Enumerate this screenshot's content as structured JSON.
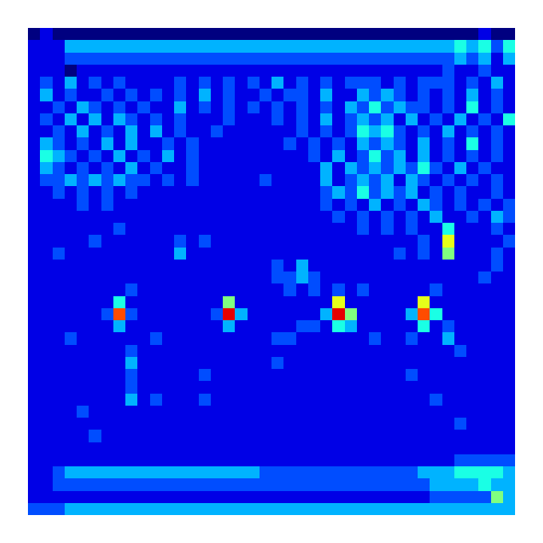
{
  "chart_data": {
    "type": "heatmap",
    "zlim": [
      0,
      10
    ],
    "tick_labels": false,
    "cells": [
      [
        0,
        1,
        0,
        0,
        0,
        0,
        0,
        0,
        0,
        0,
        0,
        0,
        0,
        0,
        0,
        0,
        0,
        0,
        0,
        0,
        0,
        0,
        0,
        0,
        0,
        0,
        0,
        0,
        0,
        0,
        0,
        0,
        0,
        0,
        0,
        0,
        0,
        1,
        0,
        0
      ],
      [
        1,
        1,
        1,
        3,
        3,
        3,
        3,
        3,
        3,
        3,
        3,
        3,
        3,
        3,
        3,
        3,
        3,
        3,
        3,
        3,
        3,
        3,
        3,
        3,
        3,
        3,
        3,
        3,
        3,
        3,
        3,
        3,
        3,
        3,
        3,
        4,
        3,
        4,
        2,
        4
      ],
      [
        1,
        1,
        1,
        2,
        2,
        2,
        2,
        2,
        2,
        2,
        2,
        2,
        2,
        2,
        2,
        2,
        2,
        2,
        2,
        2,
        2,
        2,
        2,
        2,
        2,
        2,
        2,
        2,
        2,
        2,
        2,
        2,
        2,
        2,
        2,
        3,
        2,
        3,
        1,
        3
      ],
      [
        1,
        1,
        1,
        0,
        1,
        1,
        1,
        1,
        1,
        1,
        1,
        1,
        1,
        1,
        1,
        1,
        1,
        1,
        1,
        1,
        1,
        1,
        1,
        1,
        1,
        1,
        1,
        1,
        1,
        1,
        1,
        1,
        1,
        1,
        2,
        1,
        1,
        2,
        1,
        1
      ],
      [
        1,
        2,
        1,
        3,
        1,
        2,
        1,
        2,
        1,
        1,
        1,
        1,
        2,
        1,
        2,
        1,
        2,
        1,
        2,
        1,
        3,
        1,
        2,
        1,
        2,
        1,
        2,
        2,
        2,
        1,
        2,
        1,
        2,
        2,
        2,
        1,
        2,
        1,
        3,
        1
      ],
      [
        1,
        3,
        1,
        2,
        1,
        1,
        2,
        1,
        2,
        1,
        2,
        1,
        2,
        1,
        3,
        1,
        2,
        1,
        1,
        2,
        1,
        2,
        2,
        1,
        3,
        1,
        1,
        3,
        2,
        3,
        2,
        1,
        2,
        1,
        2,
        1,
        3,
        1,
        2,
        1
      ],
      [
        1,
        1,
        2,
        1,
        3,
        2,
        1,
        2,
        1,
        2,
        1,
        1,
        3,
        1,
        2,
        1,
        2,
        1,
        2,
        1,
        2,
        1,
        2,
        1,
        2,
        1,
        3,
        2,
        4,
        2,
        3,
        2,
        2,
        1,
        2,
        1,
        4,
        1,
        2,
        1
      ],
      [
        1,
        2,
        1,
        3,
        1,
        3,
        1,
        3,
        2,
        1,
        2,
        1,
        2,
        1,
        1,
        1,
        2,
        1,
        1,
        1,
        2,
        1,
        2,
        1,
        3,
        1,
        2,
        3,
        2,
        3,
        1,
        3,
        1,
        2,
        1,
        3,
        1,
        2,
        1,
        4
      ],
      [
        1,
        1,
        2,
        1,
        3,
        1,
        2,
        1,
        3,
        1,
        3,
        1,
        2,
        1,
        1,
        2,
        1,
        1,
        1,
        1,
        1,
        1,
        2,
        1,
        2,
        1,
        2,
        4,
        3,
        4,
        2,
        1,
        2,
        1,
        3,
        1,
        2,
        1,
        2,
        1
      ],
      [
        1,
        3,
        2,
        1,
        2,
        1,
        3,
        1,
        3,
        1,
        1,
        2,
        1,
        2,
        1,
        1,
        1,
        1,
        1,
        1,
        1,
        2,
        1,
        2,
        1,
        2,
        1,
        3,
        2,
        3,
        2,
        1,
        3,
        1,
        2,
        1,
        4,
        1,
        2,
        1
      ],
      [
        1,
        4,
        3,
        2,
        1,
        2,
        1,
        3,
        1,
        2,
        1,
        3,
        1,
        2,
        1,
        1,
        1,
        1,
        1,
        1,
        1,
        1,
        1,
        2,
        1,
        3,
        1,
        2,
        4,
        2,
        3,
        1,
        3,
        1,
        2,
        1,
        2,
        1,
        2,
        1
      ],
      [
        1,
        3,
        2,
        1,
        2,
        1,
        2,
        1,
        3,
        1,
        2,
        1,
        1,
        2,
        1,
        1,
        1,
        1,
        1,
        1,
        1,
        1,
        1,
        1,
        3,
        1,
        3,
        2,
        3,
        2,
        3,
        2,
        4,
        2,
        1,
        3,
        1,
        2,
        1,
        1
      ],
      [
        1,
        2,
        2,
        3,
        2,
        3,
        2,
        3,
        2,
        2,
        1,
        2,
        1,
        2,
        1,
        1,
        1,
        1,
        1,
        2,
        1,
        1,
        1,
        1,
        3,
        1,
        2,
        3,
        2,
        3,
        1,
        3,
        2,
        1,
        2,
        1,
        2,
        1,
        2,
        1
      ],
      [
        1,
        1,
        2,
        1,
        2,
        1,
        2,
        1,
        2,
        1,
        1,
        1,
        1,
        1,
        1,
        1,
        1,
        1,
        1,
        1,
        1,
        1,
        1,
        1,
        2,
        3,
        2,
        4,
        2,
        3,
        2,
        3,
        1,
        2,
        1,
        2,
        1,
        1,
        2,
        1
      ],
      [
        1,
        1,
        1,
        1,
        2,
        1,
        2,
        1,
        1,
        1,
        1,
        1,
        1,
        1,
        1,
        1,
        1,
        1,
        1,
        1,
        1,
        1,
        1,
        1,
        2,
        1,
        2,
        1,
        3,
        1,
        2,
        1,
        3,
        2,
        1,
        2,
        1,
        2,
        1,
        2
      ],
      [
        1,
        1,
        1,
        1,
        1,
        1,
        1,
        1,
        1,
        1,
        1,
        1,
        1,
        1,
        1,
        1,
        1,
        1,
        1,
        1,
        1,
        1,
        1,
        1,
        1,
        2,
        1,
        2,
        1,
        2,
        1,
        2,
        1,
        3,
        1,
        1,
        2,
        1,
        3,
        2
      ],
      [
        1,
        1,
        1,
        1,
        1,
        1,
        1,
        2,
        1,
        1,
        1,
        1,
        1,
        1,
        1,
        1,
        1,
        1,
        1,
        1,
        1,
        1,
        1,
        1,
        1,
        1,
        1,
        2,
        1,
        2,
        1,
        2,
        1,
        1,
        4,
        1,
        1,
        1,
        2,
        1
      ],
      [
        1,
        1,
        1,
        1,
        1,
        2,
        1,
        1,
        1,
        1,
        1,
        1,
        2,
        1,
        2,
        1,
        1,
        1,
        1,
        1,
        1,
        1,
        1,
        1,
        1,
        1,
        1,
        1,
        1,
        1,
        1,
        1,
        2,
        1,
        6,
        1,
        1,
        1,
        1,
        2
      ],
      [
        1,
        1,
        2,
        1,
        1,
        1,
        1,
        1,
        1,
        1,
        1,
        1,
        3,
        1,
        1,
        1,
        1,
        1,
        1,
        1,
        1,
        1,
        1,
        1,
        1,
        1,
        1,
        1,
        1,
        1,
        2,
        1,
        2,
        1,
        5,
        1,
        1,
        1,
        2,
        1
      ],
      [
        1,
        1,
        1,
        1,
        1,
        1,
        1,
        1,
        1,
        1,
        1,
        1,
        1,
        1,
        1,
        1,
        1,
        1,
        1,
        1,
        2,
        1,
        3,
        1,
        1,
        1,
        1,
        1,
        1,
        1,
        1,
        1,
        1,
        1,
        1,
        1,
        1,
        1,
        2,
        1
      ],
      [
        1,
        1,
        1,
        1,
        1,
        1,
        1,
        1,
        1,
        1,
        1,
        1,
        1,
        1,
        1,
        1,
        1,
        1,
        1,
        1,
        2,
        2,
        3,
        2,
        1,
        1,
        1,
        1,
        1,
        1,
        1,
        1,
        1,
        1,
        1,
        1,
        1,
        2,
        1,
        1
      ],
      [
        1,
        1,
        1,
        1,
        1,
        1,
        1,
        1,
        2,
        1,
        1,
        1,
        1,
        1,
        1,
        1,
        1,
        1,
        1,
        1,
        1,
        2,
        1,
        2,
        1,
        2,
        1,
        2,
        1,
        1,
        1,
        1,
        1,
        2,
        1,
        1,
        1,
        1,
        1,
        1
      ],
      [
        1,
        1,
        1,
        1,
        1,
        1,
        1,
        4,
        1,
        1,
        1,
        1,
        1,
        1,
        1,
        1,
        5,
        1,
        1,
        1,
        1,
        1,
        1,
        1,
        1,
        6,
        1,
        1,
        1,
        1,
        1,
        1,
        6,
        1,
        1,
        1,
        1,
        1,
        1,
        1
      ],
      [
        1,
        1,
        1,
        1,
        1,
        1,
        2,
        8,
        2,
        1,
        1,
        1,
        1,
        1,
        1,
        2,
        9,
        3,
        1,
        1,
        1,
        1,
        1,
        1,
        3,
        9,
        5,
        1,
        1,
        1,
        1,
        3,
        8,
        4,
        1,
        1,
        1,
        1,
        1,
        1
      ],
      [
        1,
        1,
        1,
        1,
        1,
        1,
        1,
        3,
        1,
        1,
        1,
        1,
        1,
        1,
        1,
        1,
        3,
        1,
        1,
        1,
        1,
        1,
        2,
        2,
        1,
        4,
        3,
        1,
        1,
        1,
        1,
        1,
        4,
        1,
        2,
        1,
        1,
        1,
        1,
        1
      ],
      [
        1,
        1,
        1,
        2,
        1,
        1,
        1,
        1,
        1,
        1,
        2,
        1,
        1,
        1,
        1,
        1,
        1,
        1,
        1,
        1,
        2,
        2,
        1,
        1,
        1,
        1,
        1,
        1,
        2,
        1,
        1,
        2,
        1,
        1,
        3,
        1,
        1,
        1,
        1,
        1
      ],
      [
        1,
        1,
        1,
        1,
        1,
        1,
        1,
        1,
        2,
        1,
        1,
        1,
        1,
        1,
        1,
        1,
        1,
        1,
        1,
        1,
        1,
        1,
        1,
        1,
        1,
        1,
        1,
        1,
        1,
        1,
        1,
        1,
        1,
        1,
        1,
        2,
        1,
        1,
        1,
        1
      ],
      [
        1,
        1,
        1,
        1,
        1,
        1,
        1,
        1,
        3,
        1,
        1,
        1,
        1,
        1,
        1,
        1,
        1,
        1,
        1,
        1,
        2,
        1,
        1,
        1,
        1,
        1,
        1,
        1,
        1,
        1,
        1,
        1,
        1,
        1,
        1,
        1,
        1,
        1,
        1,
        1
      ],
      [
        1,
        1,
        1,
        1,
        1,
        1,
        1,
        1,
        2,
        1,
        1,
        1,
        1,
        1,
        2,
        1,
        1,
        1,
        1,
        1,
        1,
        1,
        1,
        1,
        1,
        1,
        1,
        1,
        1,
        1,
        1,
        2,
        1,
        1,
        1,
        1,
        1,
        1,
        1,
        1
      ],
      [
        1,
        1,
        1,
        1,
        1,
        1,
        1,
        1,
        2,
        1,
        1,
        1,
        1,
        1,
        1,
        1,
        1,
        1,
        1,
        1,
        1,
        1,
        1,
        1,
        1,
        1,
        1,
        1,
        1,
        1,
        1,
        1,
        1,
        1,
        1,
        1,
        1,
        1,
        1,
        1
      ],
      [
        1,
        1,
        1,
        1,
        1,
        1,
        1,
        1,
        3,
        1,
        2,
        1,
        1,
        1,
        2,
        1,
        1,
        1,
        1,
        1,
        1,
        1,
        1,
        1,
        1,
        1,
        1,
        1,
        1,
        1,
        1,
        1,
        1,
        2,
        1,
        1,
        1,
        1,
        1,
        1
      ],
      [
        1,
        1,
        1,
        1,
        2,
        1,
        1,
        1,
        1,
        1,
        1,
        1,
        1,
        1,
        1,
        1,
        1,
        1,
        1,
        1,
        1,
        1,
        1,
        1,
        1,
        1,
        1,
        1,
        1,
        1,
        1,
        1,
        1,
        1,
        1,
        1,
        1,
        1,
        1,
        1
      ],
      [
        1,
        1,
        1,
        1,
        1,
        1,
        1,
        1,
        1,
        1,
        1,
        1,
        1,
        1,
        1,
        1,
        1,
        1,
        1,
        1,
        1,
        1,
        1,
        1,
        1,
        1,
        1,
        1,
        1,
        1,
        1,
        1,
        1,
        1,
        1,
        2,
        1,
        1,
        1,
        1
      ],
      [
        1,
        1,
        1,
        1,
        1,
        2,
        1,
        1,
        1,
        1,
        1,
        1,
        1,
        1,
        1,
        1,
        1,
        1,
        1,
        1,
        1,
        1,
        1,
        1,
        1,
        1,
        1,
        1,
        1,
        1,
        1,
        1,
        1,
        1,
        1,
        1,
        1,
        1,
        1,
        1
      ],
      [
        1,
        1,
        1,
        1,
        1,
        1,
        1,
        1,
        1,
        1,
        1,
        1,
        1,
        1,
        1,
        1,
        1,
        1,
        1,
        1,
        1,
        1,
        1,
        1,
        1,
        1,
        1,
        1,
        1,
        1,
        1,
        1,
        1,
        1,
        1,
        1,
        1,
        1,
        1,
        1
      ],
      [
        1,
        1,
        1,
        1,
        1,
        1,
        1,
        1,
        1,
        1,
        1,
        1,
        1,
        1,
        1,
        1,
        1,
        1,
        1,
        1,
        1,
        1,
        1,
        1,
        1,
        1,
        1,
        1,
        1,
        1,
        1,
        1,
        1,
        1,
        1,
        2,
        2,
        2,
        2,
        2
      ],
      [
        1,
        1,
        2,
        3,
        3,
        3,
        3,
        3,
        3,
        3,
        3,
        3,
        3,
        3,
        3,
        3,
        3,
        3,
        3,
        2,
        2,
        2,
        2,
        2,
        2,
        2,
        2,
        2,
        2,
        2,
        2,
        2,
        3,
        3,
        3,
        4,
        4,
        4,
        4,
        3
      ],
      [
        1,
        1,
        2,
        2,
        2,
        2,
        2,
        2,
        2,
        2,
        2,
        2,
        2,
        2,
        2,
        2,
        2,
        2,
        2,
        2,
        2,
        2,
        2,
        2,
        2,
        2,
        2,
        2,
        2,
        2,
        2,
        2,
        2,
        3,
        3,
        3,
        3,
        4,
        3,
        3
      ],
      [
        1,
        1,
        1,
        1,
        1,
        1,
        1,
        1,
        1,
        1,
        1,
        1,
        1,
        1,
        1,
        1,
        1,
        1,
        1,
        1,
        1,
        1,
        1,
        1,
        1,
        1,
        1,
        1,
        1,
        1,
        1,
        1,
        1,
        2,
        2,
        2,
        2,
        2,
        5,
        3
      ],
      [
        2,
        2,
        2,
        3,
        3,
        3,
        3,
        3,
        3,
        3,
        3,
        3,
        3,
        3,
        3,
        3,
        3,
        3,
        3,
        3,
        3,
        3,
        3,
        3,
        3,
        3,
        3,
        3,
        3,
        3,
        3,
        3,
        3,
        3,
        3,
        3,
        3,
        3,
        3,
        3
      ]
    ]
  }
}
